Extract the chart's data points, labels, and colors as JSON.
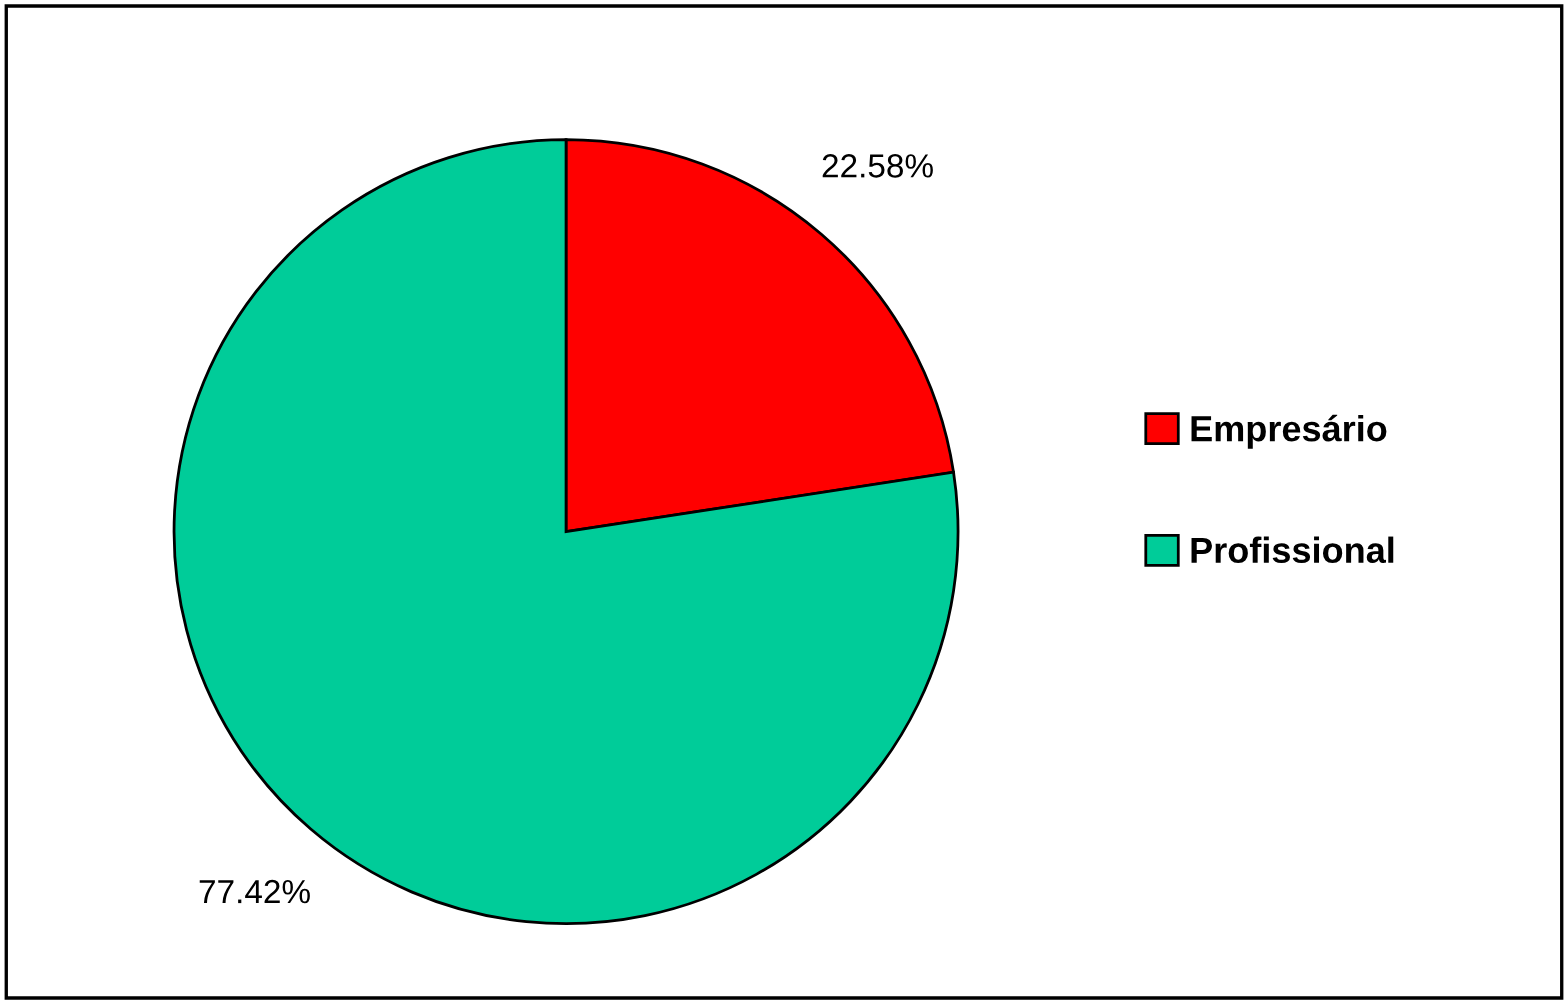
{
  "chart_data": {
    "type": "pie",
    "categories": [
      "Empresário",
      "Profissional"
    ],
    "values": [
      22.58,
      77.42
    ],
    "colors": [
      "#ff0000",
      "#00cc99"
    ],
    "value_labels": [
      "22.58%",
      "77.42%"
    ],
    "legend": "right"
  }
}
